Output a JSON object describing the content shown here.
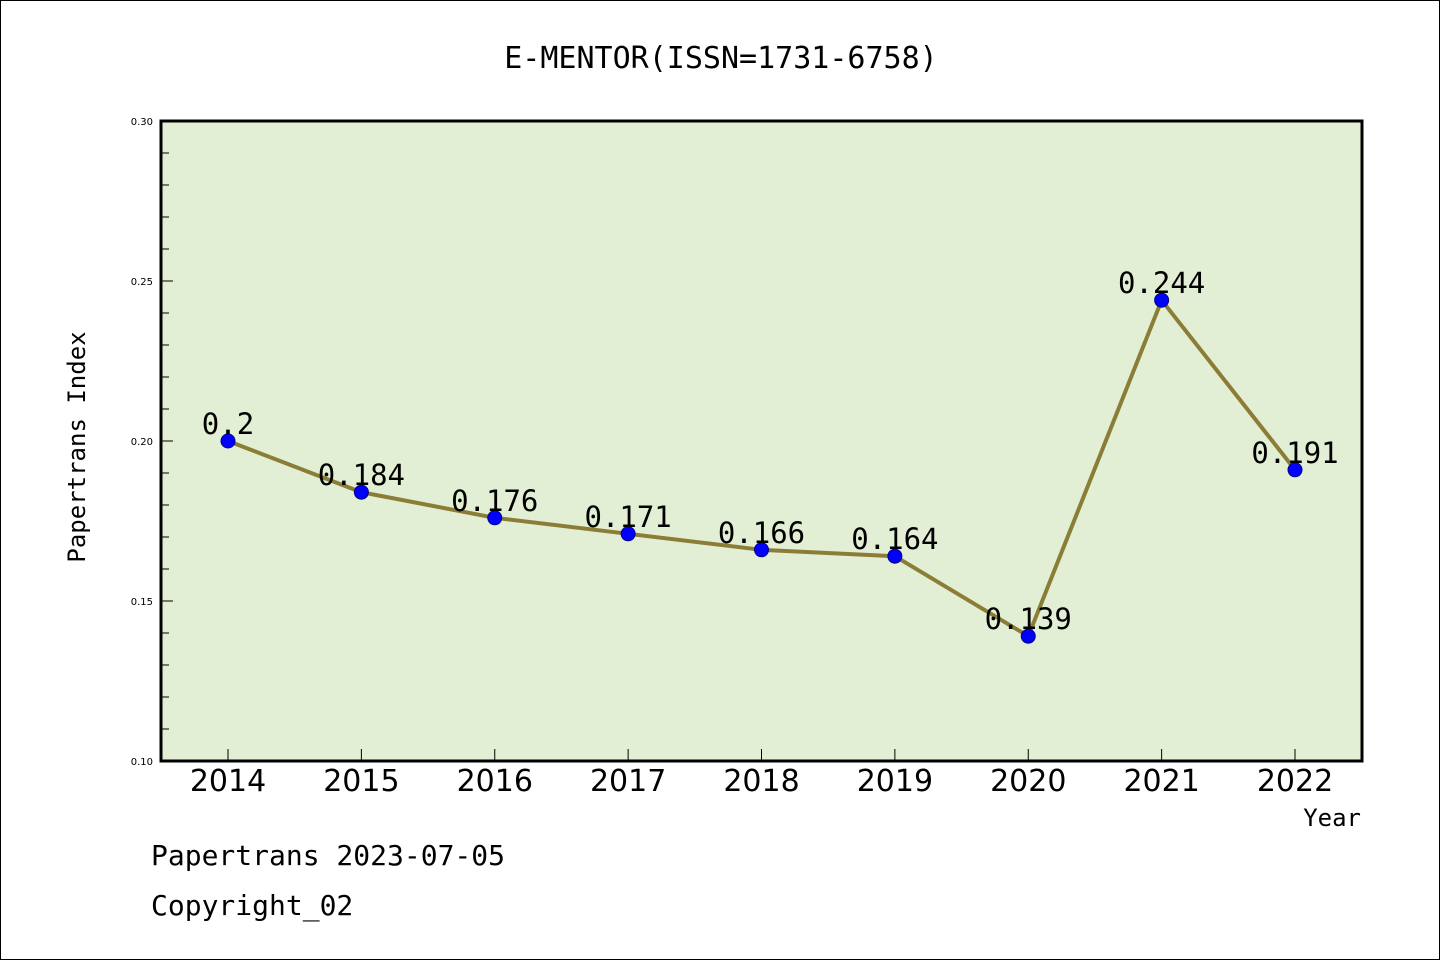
{
  "chart_data": {
    "type": "line",
    "title": "E-MENTOR(ISSN=1731-6758)",
    "xlabel": "Year",
    "ylabel": "Papertrans Index",
    "categories": [
      "2014",
      "2015",
      "2016",
      "2017",
      "2018",
      "2019",
      "2020",
      "2021",
      "2022"
    ],
    "values": [
      0.2,
      0.184,
      0.176,
      0.171,
      0.166,
      0.164,
      0.139,
      0.244,
      0.191
    ],
    "data_labels": [
      "0.2",
      "0.184",
      "0.176",
      "0.171",
      "0.166",
      "0.164",
      "0.139",
      "0.244",
      "0.191"
    ],
    "ylim": [
      0.1,
      0.3
    ],
    "yticks": [
      0.1,
      0.15,
      0.2,
      0.25,
      0.3
    ],
    "ytick_labels": [
      "0.10",
      "0.15",
      "0.20",
      "0.25",
      "0.30"
    ],
    "grid": false,
    "colors": {
      "plot_background": "#e2efd5",
      "line": "#8b7d35",
      "marker": "#0000ff"
    }
  },
  "footer": {
    "line1": "Papertrans 2023-07-05",
    "line2": "Copyright_02"
  }
}
